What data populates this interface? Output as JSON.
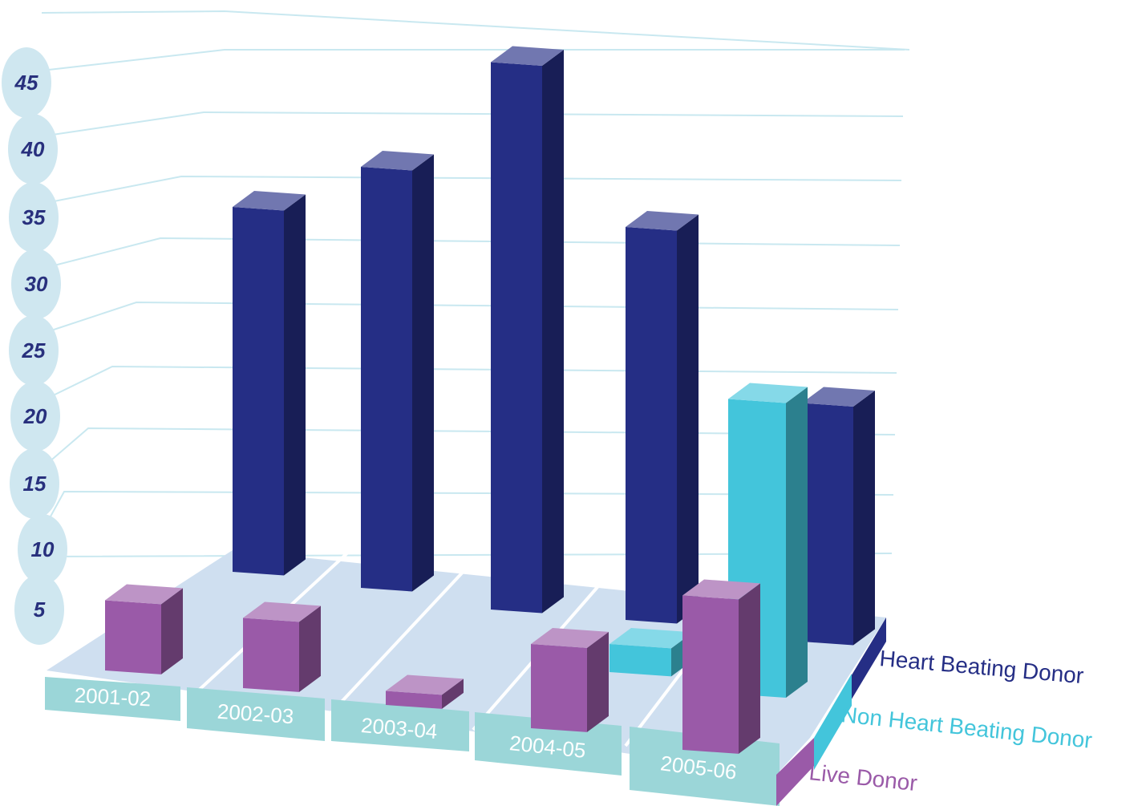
{
  "chart_data": {
    "type": "bar",
    "style": "3d-depth",
    "categories": [
      "2001-02",
      "2002-03",
      "2003-04",
      "2004-05",
      "2005-06"
    ],
    "y_ticks": [
      "5",
      "10",
      "15",
      "20",
      "25",
      "30",
      "35",
      "40",
      "45"
    ],
    "ylim": [
      0,
      47
    ],
    "grid": true,
    "legend_position": "right",
    "series": [
      {
        "name": "Heart Beating Donor",
        "values": [
          26,
          30,
          39,
          28,
          17
        ],
        "color": "#252e85"
      },
      {
        "name": "Non Heart Beating Donor",
        "values": [
          0,
          0,
          0,
          2,
          21
        ],
        "color": "#43c5db"
      },
      {
        "name": "Live Donor",
        "values": [
          5,
          5,
          1,
          6,
          11
        ],
        "color": "#9a5aa8"
      }
    ],
    "colors": {
      "grid": "#c9e8f0",
      "floor": "#cfdff0",
      "category_band": "#9bd6d8",
      "tick_badge": "#cfe7f0",
      "axis_text": "#28307d"
    }
  }
}
